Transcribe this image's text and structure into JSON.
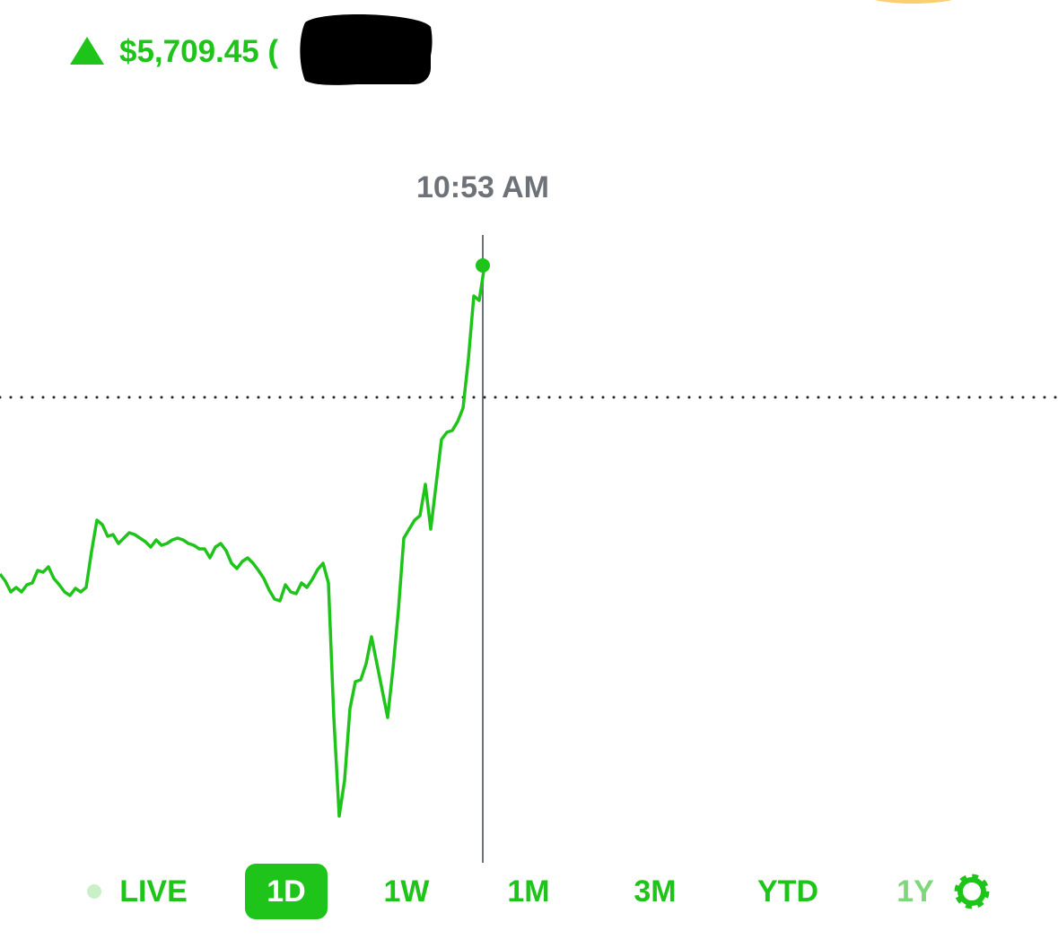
{
  "header": {
    "gain": "$5,709.45 ("
  },
  "cursor_time": "10:53 AM",
  "chart_data": {
    "type": "line",
    "color": "#1fc41a",
    "ylim": [
      0,
      700
    ],
    "reference_line": 517,
    "values": [
      320,
      312,
      300,
      305,
      300,
      308,
      310,
      324,
      322,
      328,
      315,
      308,
      300,
      296,
      304,
      300,
      305,
      345,
      380,
      375,
      362,
      364,
      354,
      360,
      366,
      364,
      360,
      356,
      350,
      358,
      352,
      354,
      358,
      360,
      358,
      354,
      352,
      348,
      348,
      338,
      350,
      354,
      346,
      332,
      326,
      334,
      338,
      332,
      324,
      315,
      302,
      292,
      290,
      308,
      300,
      298,
      310,
      305,
      314,
      325,
      332,
      310,
      160,
      50,
      90,
      170,
      200,
      202,
      220,
      250,
      220,
      190,
      160,
      215,
      280,
      360,
      370,
      380,
      385,
      420,
      370,
      420,
      470,
      478,
      480,
      490,
      505,
      560,
      630,
      625,
      664
    ]
  },
  "ranges": [
    "LIVE",
    "1D",
    "1W",
    "1M",
    "3M",
    "YTD",
    "1Y"
  ]
}
